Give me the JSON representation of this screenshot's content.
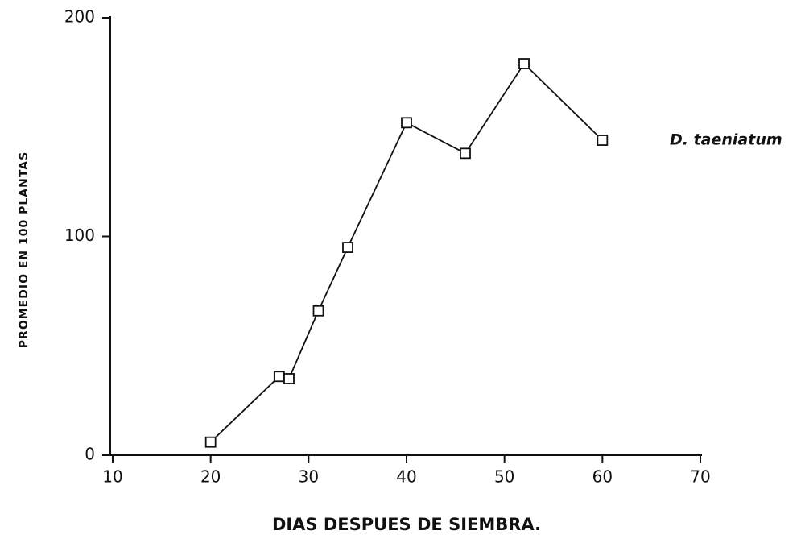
{
  "chart_data": {
    "type": "line",
    "xlabel": "DIAS DESPUES DE SIEMBRA.",
    "ylabel": "PROMEDIO EN 100 PLANTAS",
    "series": [
      {
        "name": "D. taeniatum",
        "color": "#111111",
        "x": [
          20,
          27,
          28,
          31,
          34,
          40,
          46,
          52,
          60
        ],
        "values": [
          6,
          36,
          35,
          66,
          95,
          152,
          138,
          179,
          144
        ]
      }
    ],
    "xlim": [
      10,
      70
    ],
    "xticks": [
      10,
      20,
      30,
      40,
      50,
      60,
      70
    ],
    "ylim": [
      0,
      200
    ],
    "yticks": [
      0,
      100,
      200
    ],
    "grid": false
  }
}
